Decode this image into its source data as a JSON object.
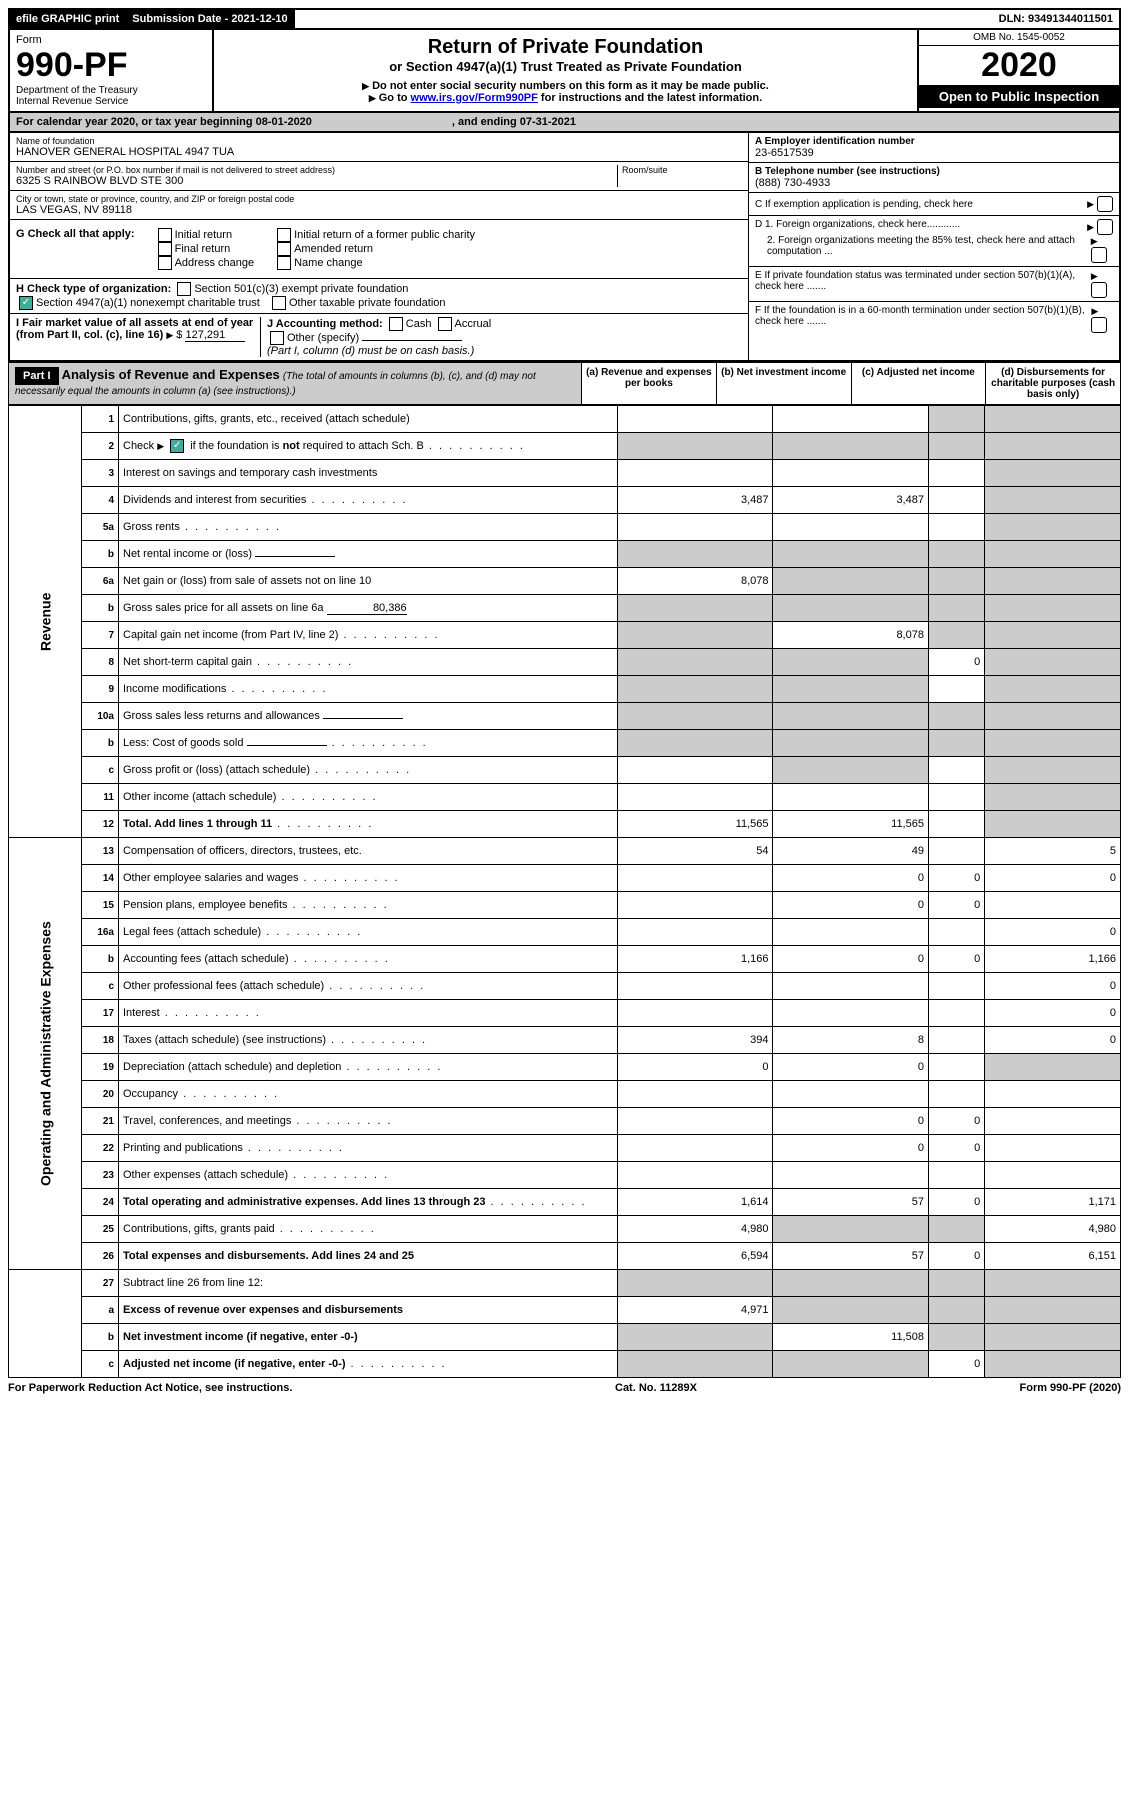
{
  "topbar": {
    "efile": "efile GRAPHIC print",
    "submission_label": "Submission Date - 2021-12-10",
    "dln_label": "DLN: 93491344011501"
  },
  "header": {
    "form_word": "Form",
    "form_no": "990-PF",
    "dept": "Department of the Treasury",
    "irs": "Internal Revenue Service",
    "title": "Return of Private Foundation",
    "subtitle": "or Section 4947(a)(1) Trust Treated as Private Foundation",
    "note1": "Do not enter social security numbers on this form as it may be made public.",
    "note2_pre": "Go to ",
    "note2_link": "www.irs.gov/Form990PF",
    "note2_post": " for instructions and the latest information.",
    "omb": "OMB No. 1545-0052",
    "year": "2020",
    "open": "Open to Public Inspection"
  },
  "cal": {
    "text_a": "For calendar year 2020, or tax year beginning 08-01-2020",
    "text_b": ", and ending 07-31-2021"
  },
  "info": {
    "name_label": "Name of foundation",
    "name": "HANOVER GENERAL HOSPITAL 4947 TUA",
    "addr_label": "Number and street (or P.O. box number if mail is not delivered to street address)",
    "addr": "6325 S RAINBOW BLVD STE 300",
    "room_label": "Room/suite",
    "city_label": "City or town, state or province, country, and ZIP or foreign postal code",
    "city": "LAS VEGAS, NV  89118",
    "ein_label": "A Employer identification number",
    "ein": "23-6517539",
    "phone_label": "B Telephone number (see instructions)",
    "phone": "(888) 730-4933",
    "c_label": "C If exemption application is pending, check here",
    "d1": "D 1. Foreign organizations, check here............",
    "d2": "2. Foreign organizations meeting the 85% test, check here and attach computation ...",
    "e": "E  If private foundation status was terminated under section 507(b)(1)(A), check here .......",
    "f": "F  If the foundation is in a 60-month termination under section 507(b)(1)(B), check here .......",
    "g_label": "G Check all that apply:",
    "g_opts": [
      "Initial return",
      "Final return",
      "Address change",
      "Initial return of a former public charity",
      "Amended return",
      "Name change"
    ],
    "h_label": "H Check type of organization:",
    "h1": "Section 501(c)(3) exempt private foundation",
    "h2": "Section 4947(a)(1) nonexempt charitable trust",
    "h3": "Other taxable private foundation",
    "i_label": "I Fair market value of all assets at end of year (from Part II, col. (c), line 16)",
    "i_val": "127,291",
    "j_label": "J Accounting method:",
    "j_cash": "Cash",
    "j_accrual": "Accrual",
    "j_other": "Other (specify)",
    "j_note": "(Part I, column (d) must be on cash basis.)"
  },
  "part1": {
    "label": "Part I",
    "title": "Analysis of Revenue and Expenses",
    "title_note": "(The total of amounts in columns (b), (c), and (d) may not necessarily equal the amounts in column (a) (see instructions).)",
    "col_a": "(a)   Revenue and expenses per books",
    "col_b": "(b)   Net investment income",
    "col_c": "(c)   Adjusted net income",
    "col_d": "(d)   Disbursements for charitable purposes (cash basis only)"
  },
  "sections": {
    "revenue": "Revenue",
    "expenses": "Operating and Administrative Expenses"
  },
  "rows": [
    {
      "n": "1",
      "d": "Contributions, gifts, grants, etc., received (attach schedule)",
      "a": "",
      "b": "",
      "c": "",
      "dd": "",
      "shade": [
        "c",
        "dd"
      ]
    },
    {
      "n": "2",
      "d": "Check ▶ ☑ if the foundation is not required to attach Sch. B",
      "dots": true,
      "a": "",
      "b": "",
      "c": "",
      "dd": "",
      "shade": [
        "a",
        "b",
        "c",
        "dd"
      ]
    },
    {
      "n": "3",
      "d": "Interest on savings and temporary cash investments",
      "a": "",
      "b": "",
      "c": "",
      "dd": "",
      "shade": [
        "dd"
      ]
    },
    {
      "n": "4",
      "d": "Dividends and interest from securities",
      "dots": true,
      "a": "3,487",
      "b": "3,487",
      "c": "",
      "dd": "",
      "shade": [
        "dd"
      ]
    },
    {
      "n": "5a",
      "d": "Gross rents",
      "dots": true,
      "a": "",
      "b": "",
      "c": "",
      "dd": "",
      "shade": [
        "dd"
      ]
    },
    {
      "n": "b",
      "d": "Net rental income or (loss)",
      "inline": true,
      "a": "",
      "b": "",
      "c": "",
      "dd": "",
      "shade": [
        "a",
        "b",
        "c",
        "dd"
      ]
    },
    {
      "n": "6a",
      "d": "Net gain or (loss) from sale of assets not on line 10",
      "a": "8,078",
      "b": "",
      "c": "",
      "dd": "",
      "shade": [
        "b",
        "c",
        "dd"
      ]
    },
    {
      "n": "b",
      "d": "Gross sales price for all assets on line 6a",
      "inline": true,
      "inlineval": "80,386",
      "a": "",
      "b": "",
      "c": "",
      "dd": "",
      "shade": [
        "a",
        "b",
        "c",
        "dd"
      ]
    },
    {
      "n": "7",
      "d": "Capital gain net income (from Part IV, line 2)",
      "dots": true,
      "a": "",
      "b": "8,078",
      "c": "",
      "dd": "",
      "shade": [
        "a",
        "c",
        "dd"
      ]
    },
    {
      "n": "8",
      "d": "Net short-term capital gain",
      "dots": true,
      "a": "",
      "b": "",
      "c": "0",
      "dd": "",
      "shade": [
        "a",
        "b",
        "dd"
      ]
    },
    {
      "n": "9",
      "d": "Income modifications",
      "dots": true,
      "a": "",
      "b": "",
      "c": "",
      "dd": "",
      "shade": [
        "a",
        "b",
        "dd"
      ]
    },
    {
      "n": "10a",
      "d": "Gross sales less returns and allowances",
      "inline": true,
      "a": "",
      "b": "",
      "c": "",
      "dd": "",
      "shade": [
        "a",
        "b",
        "c",
        "dd"
      ]
    },
    {
      "n": "b",
      "d": "Less: Cost of goods sold",
      "dots": true,
      "inline": true,
      "a": "",
      "b": "",
      "c": "",
      "dd": "",
      "shade": [
        "a",
        "b",
        "c",
        "dd"
      ]
    },
    {
      "n": "c",
      "d": "Gross profit or (loss) (attach schedule)",
      "dots": true,
      "a": "",
      "b": "",
      "c": "",
      "dd": "",
      "shade": [
        "b",
        "dd"
      ]
    },
    {
      "n": "11",
      "d": "Other income (attach schedule)",
      "dots": true,
      "a": "",
      "b": "",
      "c": "",
      "dd": "",
      "shade": [
        "dd"
      ]
    },
    {
      "n": "12",
      "d": "Total. Add lines 1 through 11",
      "bold": true,
      "dots": true,
      "a": "11,565",
      "b": "11,565",
      "c": "",
      "dd": "",
      "shade": [
        "dd"
      ]
    },
    {
      "n": "13",
      "d": "Compensation of officers, directors, trustees, etc.",
      "a": "54",
      "b": "49",
      "c": "",
      "dd": "5"
    },
    {
      "n": "14",
      "d": "Other employee salaries and wages",
      "dots": true,
      "a": "",
      "b": "0",
      "c": "0",
      "dd": "0"
    },
    {
      "n": "15",
      "d": "Pension plans, employee benefits",
      "dots": true,
      "a": "",
      "b": "0",
      "c": "0",
      "dd": ""
    },
    {
      "n": "16a",
      "d": "Legal fees (attach schedule)",
      "dots": true,
      "a": "",
      "b": "",
      "c": "",
      "dd": "0"
    },
    {
      "n": "b",
      "d": "Accounting fees (attach schedule)",
      "dots": true,
      "a": "1,166",
      "b": "0",
      "c": "0",
      "dd": "1,166"
    },
    {
      "n": "c",
      "d": "Other professional fees (attach schedule)",
      "dots": true,
      "a": "",
      "b": "",
      "c": "",
      "dd": "0"
    },
    {
      "n": "17",
      "d": "Interest",
      "dots": true,
      "a": "",
      "b": "",
      "c": "",
      "dd": "0"
    },
    {
      "n": "18",
      "d": "Taxes (attach schedule) (see instructions)",
      "dots": true,
      "a": "394",
      "b": "8",
      "c": "",
      "dd": "0"
    },
    {
      "n": "19",
      "d": "Depreciation (attach schedule) and depletion",
      "dots": true,
      "a": "0",
      "b": "0",
      "c": "",
      "dd": "",
      "shade": [
        "dd"
      ]
    },
    {
      "n": "20",
      "d": "Occupancy",
      "dots": true,
      "a": "",
      "b": "",
      "c": "",
      "dd": ""
    },
    {
      "n": "21",
      "d": "Travel, conferences, and meetings",
      "dots": true,
      "a": "",
      "b": "0",
      "c": "0",
      "dd": ""
    },
    {
      "n": "22",
      "d": "Printing and publications",
      "dots": true,
      "a": "",
      "b": "0",
      "c": "0",
      "dd": ""
    },
    {
      "n": "23",
      "d": "Other expenses (attach schedule)",
      "dots": true,
      "a": "",
      "b": "",
      "c": "",
      "dd": ""
    },
    {
      "n": "24",
      "d": "Total operating and administrative expenses. Add lines 13 through 23",
      "bold": true,
      "dots": true,
      "a": "1,614",
      "b": "57",
      "c": "0",
      "dd": "1,171"
    },
    {
      "n": "25",
      "d": "Contributions, gifts, grants paid",
      "dots": true,
      "a": "4,980",
      "b": "",
      "c": "",
      "dd": "4,980",
      "shade": [
        "b",
        "c"
      ]
    },
    {
      "n": "26",
      "d": "Total expenses and disbursements. Add lines 24 and 25",
      "bold": true,
      "a": "6,594",
      "b": "57",
      "c": "0",
      "dd": "6,151"
    },
    {
      "n": "27",
      "d": "Subtract line 26 from line 12:",
      "a": "",
      "b": "",
      "c": "",
      "dd": "",
      "shade": [
        "a",
        "b",
        "c",
        "dd"
      ]
    },
    {
      "n": "a",
      "d": "Excess of revenue over expenses and disbursements",
      "bold": true,
      "a": "4,971",
      "b": "",
      "c": "",
      "dd": "",
      "shade": [
        "b",
        "c",
        "dd"
      ]
    },
    {
      "n": "b",
      "d": "Net investment income (if negative, enter -0-)",
      "bold": true,
      "a": "",
      "b": "11,508",
      "c": "",
      "dd": "",
      "shade": [
        "a",
        "c",
        "dd"
      ]
    },
    {
      "n": "c",
      "d": "Adjusted net income (if negative, enter -0-)",
      "bold": true,
      "dots": true,
      "a": "",
      "b": "",
      "c": "0",
      "dd": "",
      "shade": [
        "a",
        "b",
        "dd"
      ]
    }
  ],
  "footer": {
    "left": "For Paperwork Reduction Act Notice, see instructions.",
    "mid": "Cat. No. 11289X",
    "right": "Form 990-PF (2020)"
  }
}
